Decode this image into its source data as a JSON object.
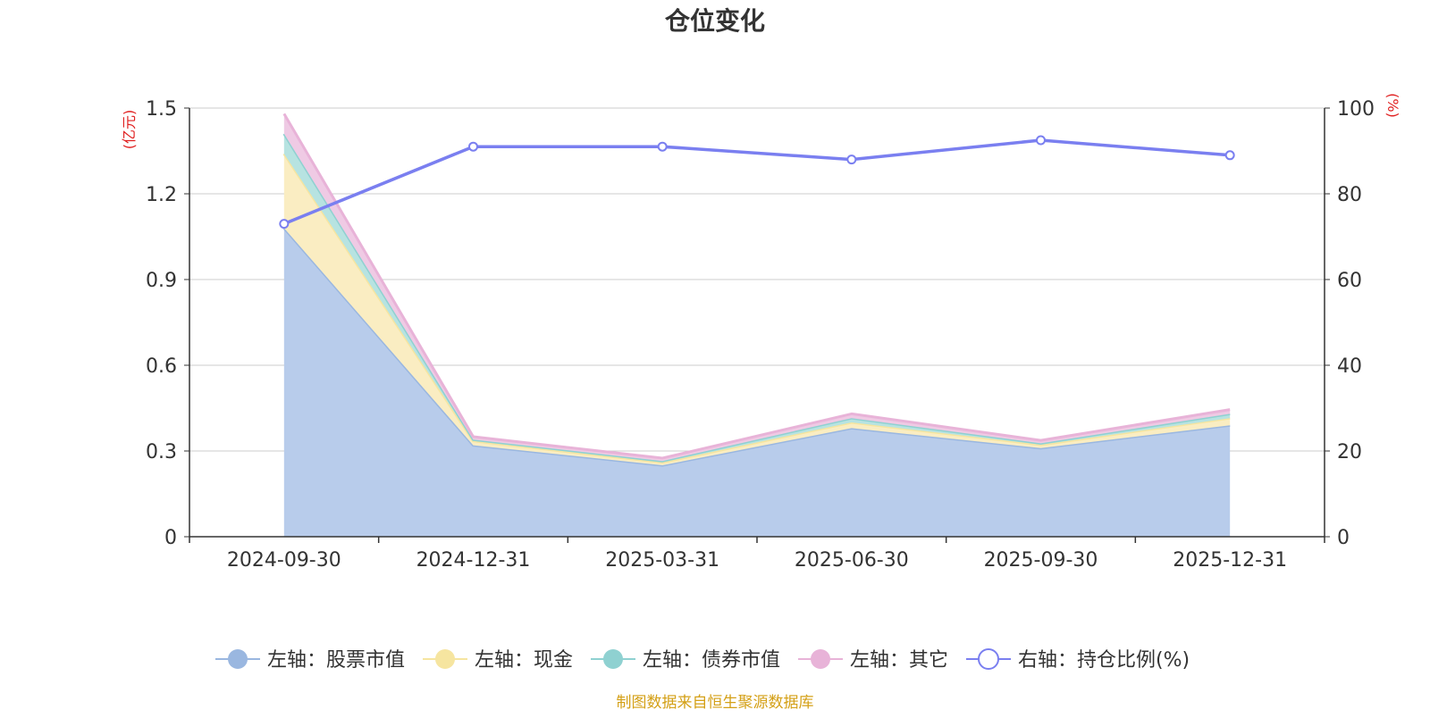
{
  "chart_data": {
    "type": "area",
    "title": "仓位变化",
    "categories": [
      "2024-09-30",
      "2024-12-31",
      "2025-03-31",
      "2025-06-30",
      "2025-09-30",
      "2025-12-31"
    ],
    "left_axis": {
      "unit": "(亿元)",
      "ticks": [
        "0",
        "0.3",
        "0.6",
        "0.9",
        "1.2",
        "1.5"
      ],
      "ylim": [
        0,
        1.5
      ]
    },
    "right_axis": {
      "unit": "(%)",
      "ticks": [
        "0",
        "20",
        "40",
        "60",
        "80",
        "100"
      ],
      "ylim": [
        0,
        100
      ]
    },
    "series": [
      {
        "name": "左轴：股票市值",
        "axis": "left",
        "kind": "stacked-area",
        "color": "#9ab7e0",
        "fill": "#b8cceb",
        "values": [
          1.08,
          0.32,
          0.25,
          0.38,
          0.31,
          0.39
        ]
      },
      {
        "name": "左轴：现金",
        "axis": "left",
        "kind": "stacked-area",
        "color": "#f6e5a0",
        "fill": "#faedc2",
        "values": [
          0.26,
          0.015,
          0.01,
          0.02,
          0.012,
          0.025
        ]
      },
      {
        "name": "左轴：债券市值",
        "axis": "left",
        "kind": "stacked-area",
        "color": "#8fd1d1",
        "fill": "#b7e3e1",
        "values": [
          0.07,
          0.005,
          0.005,
          0.015,
          0.005,
          0.015
        ]
      },
      {
        "name": "左轴：其它",
        "axis": "left",
        "kind": "stacked-area",
        "color": "#e8b3d8",
        "fill": "#efcae4",
        "values": [
          0.07,
          0.01,
          0.01,
          0.015,
          0.01,
          0.015
        ]
      },
      {
        "name": "右轴：持仓比例(%)",
        "axis": "right",
        "kind": "line",
        "color": "#7a7ff0",
        "values": [
          73,
          91,
          91,
          88,
          92.5,
          89
        ]
      }
    ],
    "grid": true,
    "legend_position": "bottom",
    "source": "制图数据来自恒生聚源数据库",
    "colors": {
      "unit_label": "#e02020",
      "source_text": "#d4a017",
      "grid": "#cccccc",
      "axis": "#333333"
    }
  }
}
